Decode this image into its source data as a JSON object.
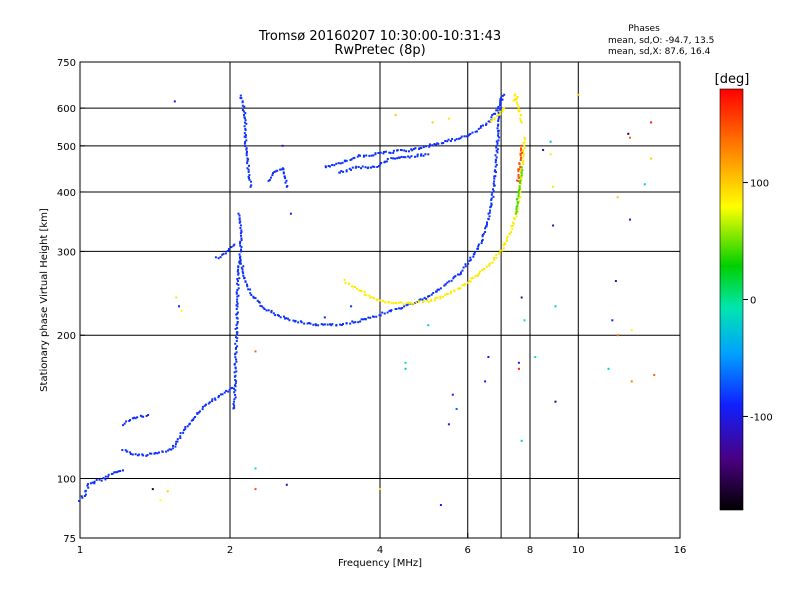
{
  "title": "Tromsø 20160207 10:30:00-10:31:43",
  "subtitle": "RwPretec (8p)",
  "phases_header": "Phases",
  "phases_o": "mean, sd,O: -94.7, 13.5",
  "phases_x": "mean, sd,X:  87.6, 16.4",
  "colorbar": {
    "label": "[deg]",
    "range": [
      -180,
      180
    ],
    "ticks": [
      100,
      0,
      -100
    ],
    "tick_labels": [
      "100",
      "0",
      "-100"
    ]
  },
  "chart_data": {
    "type": "scatter",
    "title": "Tromsø 20160207 10:30:00-10:31:43",
    "subtitle": "RwPretec (8p)",
    "xlabel": "Frequency [MHz]",
    "ylabel": "Stationary phase Virtual Height [km]",
    "x_scale": "log",
    "y_scale": "log",
    "xlim": [
      1,
      16
    ],
    "ylim": [
      75,
      750
    ],
    "x_ticks": [
      1,
      2,
      4,
      6,
      8,
      10,
      16
    ],
    "x_tick_labels": [
      "1",
      "2",
      "4",
      "6",
      "8",
      "10",
      "16"
    ],
    "y_ticks": [
      75,
      100,
      200,
      300,
      400,
      500,
      600,
      750
    ],
    "y_tick_labels": [
      "75",
      "100",
      "200",
      "300",
      "400",
      "500",
      "600",
      "750"
    ],
    "x_grid": [
      2,
      4,
      6,
      7,
      8,
      10
    ],
    "y_grid": [
      100,
      200,
      300,
      400,
      500,
      600
    ],
    "grid": true,
    "color_by": "phase [deg]",
    "traces": [
      {
        "phase": -95,
        "points": [
          [
            1.0,
            90
          ],
          [
            1.02,
            92
          ],
          [
            1.04,
            97
          ],
          [
            1.08,
            99
          ],
          [
            1.12,
            100
          ],
          [
            1.17,
            103
          ],
          [
            1.22,
            104
          ]
        ]
      },
      {
        "phase": -95,
        "points": [
          [
            1.22,
            115
          ],
          [
            1.28,
            112
          ],
          [
            1.34,
            112
          ],
          [
            1.42,
            113
          ],
          [
            1.5,
            114
          ],
          [
            1.56,
            118
          ],
          [
            1.61,
            126
          ],
          [
            1.68,
            133
          ],
          [
            1.76,
            140
          ],
          [
            1.86,
            147
          ],
          [
            1.96,
            152
          ],
          [
            2.02,
            155
          ]
        ]
      },
      {
        "phase": -95,
        "points": [
          [
            1.22,
            130
          ],
          [
            1.26,
            133
          ],
          [
            1.32,
            135
          ],
          [
            1.37,
            136
          ]
        ]
      },
      {
        "phase": -95,
        "points": [
          [
            1.88,
            290
          ],
          [
            1.95,
            296
          ],
          [
            2.01,
            305
          ],
          [
            2.04,
            310
          ]
        ]
      },
      {
        "phase": -95,
        "points": [
          [
            2.04,
            140
          ],
          [
            2.05,
            160
          ],
          [
            2.06,
            200
          ],
          [
            2.07,
            240
          ],
          [
            2.08,
            275
          ],
          [
            2.1,
            290
          ],
          [
            2.1,
            330
          ],
          [
            2.08,
            360
          ]
        ]
      },
      {
        "phase": -95,
        "points": [
          [
            2.1,
            290
          ],
          [
            2.15,
            260
          ],
          [
            2.22,
            242
          ],
          [
            2.32,
            230
          ],
          [
            2.45,
            222
          ],
          [
            2.62,
            216
          ],
          [
            2.85,
            212
          ],
          [
            3.1,
            210
          ],
          [
            3.35,
            211
          ],
          [
            3.6,
            214
          ],
          [
            3.9,
            219
          ],
          [
            4.2,
            225
          ],
          [
            4.6,
            232
          ],
          [
            5.0,
            240
          ],
          [
            5.4,
            255
          ],
          [
            5.8,
            270
          ],
          [
            6.1,
            290
          ],
          [
            6.35,
            310
          ],
          [
            6.55,
            340
          ],
          [
            6.7,
            380
          ],
          [
            6.8,
            430
          ],
          [
            6.9,
            520
          ],
          [
            6.95,
            590
          ],
          [
            7.0,
            630
          ]
        ]
      },
      {
        "phase": -95,
        "points": [
          [
            2.1,
            640
          ],
          [
            2.12,
            620
          ],
          [
            2.15,
            560
          ],
          [
            2.15,
            500
          ],
          [
            2.18,
            440
          ],
          [
            2.2,
            410
          ]
        ]
      },
      {
        "phase": -95,
        "points": [
          [
            2.4,
            420
          ],
          [
            2.45,
            440
          ],
          [
            2.55,
            450
          ],
          [
            2.6,
            410
          ]
        ]
      },
      {
        "phase": -95,
        "points": [
          [
            3.1,
            450
          ],
          [
            3.3,
            460
          ],
          [
            3.6,
            475
          ],
          [
            3.9,
            480
          ],
          [
            4.2,
            485
          ],
          [
            4.6,
            490
          ],
          [
            5.0,
            500
          ],
          [
            5.4,
            510
          ],
          [
            5.8,
            520
          ],
          [
            6.2,
            535
          ],
          [
            6.6,
            560
          ],
          [
            6.9,
            600
          ],
          [
            7.1,
            640
          ]
        ]
      },
      {
        "phase": -95,
        "points": [
          [
            3.3,
            440
          ],
          [
            3.6,
            450
          ],
          [
            3.9,
            450
          ],
          [
            4.2,
            470
          ],
          [
            4.6,
            475
          ],
          [
            5.0,
            480
          ]
        ]
      },
      {
        "phase": 88,
        "points": [
          [
            3.4,
            260
          ],
          [
            3.6,
            250
          ],
          [
            3.8,
            242
          ],
          [
            4.0,
            236
          ],
          [
            4.3,
            234
          ],
          [
            4.6,
            233
          ],
          [
            5.0,
            236
          ],
          [
            5.4,
            242
          ],
          [
            5.8,
            252
          ],
          [
            6.2,
            265
          ],
          [
            6.6,
            280
          ],
          [
            7.0,
            300
          ],
          [
            7.4,
            340
          ],
          [
            7.6,
            380
          ],
          [
            7.7,
            440
          ],
          [
            7.8,
            520
          ]
        ]
      },
      {
        "phase": 88,
        "points": [
          [
            7.4,
            620
          ],
          [
            7.5,
            640
          ],
          [
            7.6,
            600
          ],
          [
            7.7,
            560
          ]
        ]
      },
      {
        "phase": 88,
        "points": [
          [
            6.7,
            560
          ],
          [
            6.9,
            580
          ],
          [
            7.1,
            600
          ]
        ]
      },
      {
        "phase": 35,
        "points": [
          [
            7.5,
            360
          ],
          [
            7.6,
            400
          ],
          [
            7.7,
            450
          ]
        ]
      },
      {
        "phase": 150,
        "points": [
          [
            7.55,
            420
          ],
          [
            7.65,
            470
          ],
          [
            7.7,
            500
          ]
        ]
      }
    ],
    "scattered": [
      {
        "x": 1.55,
        "y": 620,
        "phase": -120
      },
      {
        "x": 1.56,
        "y": 240,
        "phase": 90
      },
      {
        "x": 1.58,
        "y": 230,
        "phase": -100
      },
      {
        "x": 1.6,
        "y": 225,
        "phase": 80
      },
      {
        "x": 2.25,
        "y": 105,
        "phase": -10
      },
      {
        "x": 2.25,
        "y": 95,
        "phase": 150
      },
      {
        "x": 2.25,
        "y": 185,
        "phase": 140
      },
      {
        "x": 2.55,
        "y": 500,
        "phase": -110
      },
      {
        "x": 2.6,
        "y": 97,
        "phase": -120
      },
      {
        "x": 2.65,
        "y": 360,
        "phase": -100
      },
      {
        "x": 3.1,
        "y": 218,
        "phase": -95
      },
      {
        "x": 3.5,
        "y": 230,
        "phase": -95
      },
      {
        "x": 4.0,
        "y": 95,
        "phase": 90
      },
      {
        "x": 4.3,
        "y": 580,
        "phase": 100
      },
      {
        "x": 4.5,
        "y": 175,
        "phase": -10
      },
      {
        "x": 4.5,
        "y": 170,
        "phase": -30
      },
      {
        "x": 5.0,
        "y": 210,
        "phase": -30
      },
      {
        "x": 5.1,
        "y": 560,
        "phase": 100
      },
      {
        "x": 5.3,
        "y": 88,
        "phase": -100
      },
      {
        "x": 5.5,
        "y": 130,
        "phase": -110
      },
      {
        "x": 5.5,
        "y": 570,
        "phase": 90
      },
      {
        "x": 5.6,
        "y": 150,
        "phase": -100
      },
      {
        "x": 5.7,
        "y": 140,
        "phase": -80
      },
      {
        "x": 6.5,
        "y": 160,
        "phase": -100
      },
      {
        "x": 6.6,
        "y": 180,
        "phase": -110
      },
      {
        "x": 7.6,
        "y": 170,
        "phase": 170
      },
      {
        "x": 7.6,
        "y": 175,
        "phase": -100
      },
      {
        "x": 7.7,
        "y": 120,
        "phase": -30
      },
      {
        "x": 7.7,
        "y": 240,
        "phase": -130
      },
      {
        "x": 7.8,
        "y": 215,
        "phase": -10
      },
      {
        "x": 8.2,
        "y": 180,
        "phase": -10
      },
      {
        "x": 8.5,
        "y": 490,
        "phase": -130
      },
      {
        "x": 8.8,
        "y": 510,
        "phase": -40
      },
      {
        "x": 8.8,
        "y": 480,
        "phase": 90
      },
      {
        "x": 8.9,
        "y": 410,
        "phase": 90
      },
      {
        "x": 8.9,
        "y": 340,
        "phase": -120
      },
      {
        "x": 9.0,
        "y": 230,
        "phase": -30
      },
      {
        "x": 9.0,
        "y": 145,
        "phase": -150
      },
      {
        "x": 10.0,
        "y": 640,
        "phase": 100
      },
      {
        "x": 11.5,
        "y": 170,
        "phase": -30
      },
      {
        "x": 11.7,
        "y": 215,
        "phase": -100
      },
      {
        "x": 11.9,
        "y": 260,
        "phase": -120
      },
      {
        "x": 12.0,
        "y": 390,
        "phase": 100
      },
      {
        "x": 12.0,
        "y": 200,
        "phase": 140
      },
      {
        "x": 12.6,
        "y": 530,
        "phase": -160
      },
      {
        "x": 12.7,
        "y": 520,
        "phase": 140
      },
      {
        "x": 12.7,
        "y": 350,
        "phase": -110
      },
      {
        "x": 12.8,
        "y": 160,
        "phase": 130
      },
      {
        "x": 12.8,
        "y": 205,
        "phase": 80
      },
      {
        "x": 13.6,
        "y": 415,
        "phase": -30
      },
      {
        "x": 14.0,
        "y": 560,
        "phase": 170
      },
      {
        "x": 14.0,
        "y": 470,
        "phase": 100
      },
      {
        "x": 14.2,
        "y": 165,
        "phase": 140
      },
      {
        "x": 1.45,
        "y": 90,
        "phase": 80
      },
      {
        "x": 1.4,
        "y": 95,
        "phase": -160
      },
      {
        "x": 1.5,
        "y": 94,
        "phase": 100
      }
    ]
  }
}
